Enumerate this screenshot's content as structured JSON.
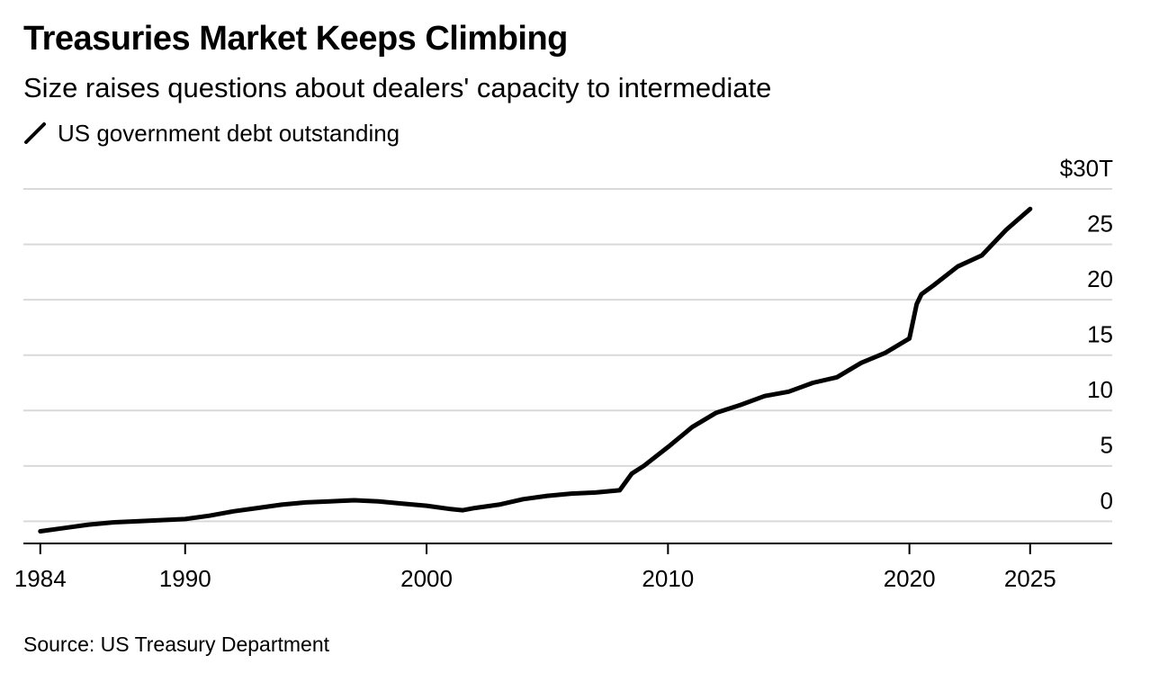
{
  "title": "Treasuries Market Keeps Climbing",
  "subtitle": "Size raises questions about dealers' capacity to intermediate",
  "source": "Source: US Treasury Department",
  "colors": {
    "line": "#000000",
    "grid": "#d9d9d9",
    "axis": "#000000",
    "text": "#000000"
  },
  "chart_data": {
    "type": "line",
    "title": "Treasuries Market Keeps Climbing",
    "subtitle": "Size raises questions about dealers' capacity to intermediate",
    "xlabel": "",
    "ylabel": "",
    "xlim": [
      1983.3,
      2028.4
    ],
    "ylim": [
      -2,
      30
    ],
    "x_ticks": [
      1984,
      1990,
      2000,
      2010,
      2020,
      2025
    ],
    "x_tick_labels": [
      "1984",
      "1990",
      "2000",
      "2010",
      "2020",
      "2025"
    ],
    "y_ticks": [
      0,
      5,
      10,
      15,
      20,
      25,
      30
    ],
    "y_tick_labels": [
      "0",
      "5",
      "10",
      "15",
      "20",
      "25",
      "$30T"
    ],
    "grid": true,
    "legend_position": "top-left",
    "series": [
      {
        "name": "US government debt outstanding",
        "x": [
          1984,
          1985,
          1986,
          1987,
          1988,
          1989,
          1990,
          1991,
          1992,
          1993,
          1994,
          1995,
          1996,
          1997,
          1998,
          1999,
          2000,
          2001,
          2001.5,
          2002,
          2003,
          2004,
          2005,
          2006,
          2007,
          2008,
          2008.5,
          2009,
          2010,
          2011,
          2012,
          2013,
          2014,
          2015,
          2016,
          2017,
          2018,
          2019,
          2020,
          2020.3,
          2020.5,
          2021,
          2022,
          2023,
          2024,
          2025
        ],
        "y": [
          -0.9,
          -0.6,
          -0.3,
          -0.1,
          0.0,
          0.1,
          0.2,
          0.5,
          0.9,
          1.2,
          1.5,
          1.7,
          1.8,
          1.9,
          1.8,
          1.6,
          1.4,
          1.1,
          1.0,
          1.2,
          1.5,
          2.0,
          2.3,
          2.5,
          2.6,
          2.8,
          4.3,
          5.0,
          6.7,
          8.5,
          9.8,
          10.5,
          11.3,
          11.7,
          12.5,
          13.0,
          14.3,
          15.2,
          16.5,
          19.6,
          20.5,
          21.3,
          23.0,
          24.0,
          26.3,
          28.2
        ]
      }
    ]
  }
}
